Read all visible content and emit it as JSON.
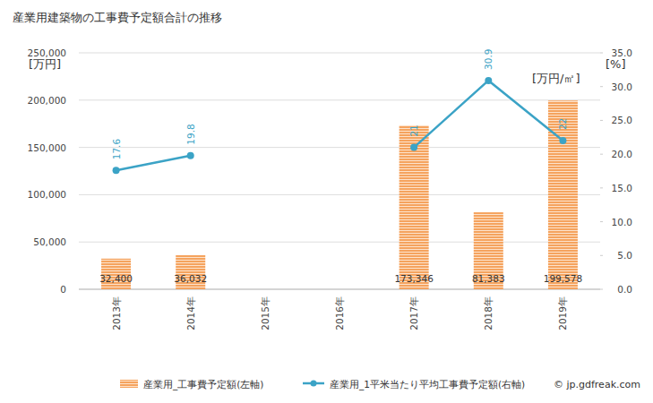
{
  "chart_data": {
    "type": "bar",
    "title": "産業用建築物の工事費予定額合計の推移",
    "ylabel": "[万円]",
    "y2label": "[万円/㎡]",
    "y2unit": "[%]",
    "source": "© jp.gdfreak.com",
    "categories": [
      "2013年",
      "2014年",
      "2015年",
      "2016年",
      "2017年",
      "2018年",
      "2019年"
    ],
    "series": [
      {
        "name": "産業用_工事費予定額(左軸)",
        "type": "bar",
        "color": "#f5a35e",
        "values": [
          32400,
          36032,
          null,
          null,
          173346,
          81383,
          199578
        ],
        "value_labels": [
          "32,400",
          "36,032",
          null,
          null,
          "173,346",
          "81,383",
          "199,578"
        ]
      },
      {
        "name": "産業用_1平米当たり平均工事費予定額(右軸)",
        "type": "line",
        "axis": "y2",
        "color": "#3ba3c6",
        "marker": "circle",
        "values": [
          17.6,
          19.8,
          null,
          null,
          21,
          30.9,
          22
        ]
      }
    ],
    "ylim": [
      0,
      250000
    ],
    "yticks": [
      0,
      {
        "value": 50000,
        "label": "50,000"
      },
      {
        "value": 100000,
        "label": "100,000"
      },
      {
        "value": 150000,
        "label": "150,000"
      },
      {
        "value": 200000,
        "label": "200,000"
      },
      {
        "value": 250000,
        "label": "250,000"
      }
    ],
    "y2lim": [
      0,
      35
    ],
    "y2ticks": [
      {
        "value": 0,
        "label": "0.0"
      },
      {
        "value": 5,
        "label": "5.0"
      },
      {
        "value": 10,
        "label": "10.0"
      },
      {
        "value": 15,
        "label": "15.0"
      },
      {
        "value": 20,
        "label": "20.0"
      },
      {
        "value": 25,
        "label": "25.0"
      },
      {
        "value": 30,
        "label": "30.0"
      },
      {
        "value": 35,
        "label": "35.0"
      }
    ],
    "grid": true,
    "data_labels": true,
    "legend": "bottom"
  }
}
